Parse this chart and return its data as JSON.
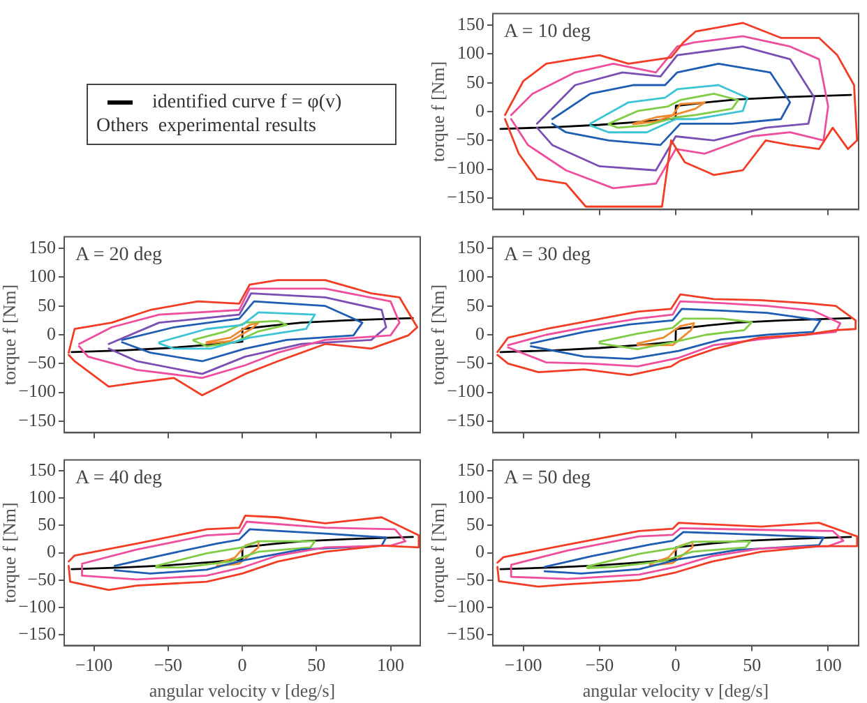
{
  "chart_data": [
    {
      "type": "line",
      "ylabel": "torque f [Nm]",
      "annotations": [
        "A = 10 deg",
        "Others  experimental results"
      ],
      "xlim": [
        -120,
        120
      ],
      "ylim": [
        -170,
        170
      ],
      "xticks": [
        -100,
        -50,
        0,
        50,
        100
      ],
      "yticks": [
        -150,
        -100,
        -50,
        0,
        50,
        100,
        150
      ],
      "tick_labels": "y",
      "legend": "left",
      "marker": "none",
      "line_style": "solid",
      "series": [
        {
          "type": "line",
          "color": "#f23c24",
          "x": [
            -112,
            -100,
            -85,
            -69,
            -50,
            -31,
            -3,
            5,
            13,
            44,
            69,
            94,
            106,
            117,
            119,
            113,
            103,
            94,
            75,
            59,
            44,
            25,
            6,
            -3,
            -9,
            -59,
            -72,
            -91,
            -103,
            -112
          ],
          "values": [
            -6,
            53,
            83,
            90,
            98,
            83,
            94,
            120,
            139,
            154,
            128,
            128,
            98,
            46,
            -50,
            -65,
            -28,
            -65,
            -58,
            -50,
            -102,
            -110,
            -88,
            -50,
            -165,
            -165,
            -125,
            -117,
            -73,
            -13
          ]
        },
        {
          "type": "line",
          "color": "#ee4f9c",
          "x": [
            -108,
            -94,
            -66,
            -41,
            -13,
            1,
            12,
            44,
            75,
            94,
            100,
            97,
            75,
            50,
            19,
            0,
            -13,
            -41,
            -72,
            -97,
            -108
          ],
          "values": [
            -6,
            31,
            68,
            83,
            68,
            113,
            120,
            131,
            113,
            91,
            9,
            -50,
            -36,
            -43,
            -73,
            -65,
            -125,
            -133,
            -102,
            -58,
            -13
          ]
        },
        {
          "type": "line",
          "color": "#7a4fb4",
          "x": [
            -91,
            -66,
            -35,
            -10,
            1,
            44,
            75,
            91,
            87,
            59,
            25,
            0,
            -13,
            -50,
            -81,
            -91
          ],
          "values": [
            -21,
            46,
            68,
            61,
            98,
            113,
            91,
            24,
            -21,
            -28,
            -50,
            -43,
            -102,
            -95,
            -58,
            -28
          ]
        },
        {
          "type": "line",
          "color": "#1f5db3",
          "x": [
            -81,
            -56,
            -28,
            -7,
            1,
            28,
            62,
            75,
            69,
            37,
            3,
            -10,
            -44,
            -72,
            -81
          ],
          "values": [
            -13,
            31,
            46,
            46,
            68,
            83,
            68,
            16,
            -13,
            -21,
            -21,
            -58,
            -50,
            -36,
            -21
          ]
        },
        {
          "type": "line",
          "color": "#3cc4d4",
          "x": [
            -56,
            -31,
            -7,
            1,
            28,
            47,
            44,
            13,
            0,
            -19,
            -44,
            -56
          ],
          "values": [
            -21,
            16,
            24,
            39,
            46,
            24,
            1,
            -13,
            -13,
            -36,
            -36,
            -24
          ]
        },
        {
          "type": "line",
          "color": "#80cc44",
          "x": [
            -44,
            -25,
            -5,
            3,
            25,
            41,
            37,
            13,
            0,
            -19,
            -38,
            -44
          ],
          "values": [
            -21,
            1,
            9,
            20,
            31,
            20,
            5,
            -6,
            -10,
            -24,
            -28,
            -22
          ]
        },
        {
          "type": "line",
          "color": "#f08a30",
          "x": [
            -28,
            -13,
            -2,
            3,
            19,
            13,
            0,
            -13,
            -28
          ],
          "values": [
            -21,
            -10,
            -6,
            13,
            16,
            5,
            -5,
            -17,
            -22
          ]
        },
        {
          "type": "line",
          "name": "identified curve f = φ(v)",
          "color": "#000000",
          "x": [
            -115,
            -80,
            -50,
            -20,
            -0.1,
            0.1,
            20,
            40,
            70,
            115
          ],
          "values": [
            -30,
            -27,
            -23,
            -17,
            -12,
            10,
            16,
            21,
            25,
            29
          ]
        }
      ]
    },
    {
      "type": "line",
      "ylabel": "torque f [Nm]",
      "annotations": [
        "A = 20 deg"
      ],
      "xlim": [
        -120,
        120
      ],
      "ylim": [
        -170,
        170
      ],
      "xticks": [
        -100,
        -50,
        0,
        50,
        100
      ],
      "yticks": [
        -150,
        -100,
        -50,
        0,
        50,
        100,
        150
      ],
      "tick_labels": "y",
      "marker": "none",
      "line_style": "solid",
      "series": [
        {
          "type": "line",
          "color": "#f23c24",
          "x": [
            -117,
            -113,
            -88,
            -62,
            -30,
            -2,
            5,
            24,
            56,
            87,
            106,
            118,
            112,
            87,
            56,
            24,
            2,
            -27,
            -46,
            -71,
            -90,
            -113,
            -117
          ],
          "values": [
            -31,
            10,
            21,
            43,
            58,
            54,
            87,
            95,
            95,
            72,
            65,
            13,
            -1,
            -24,
            -16,
            -46,
            -68,
            -105,
            -75,
            -83,
            -90,
            -46,
            -35
          ]
        },
        {
          "type": "line",
          "color": "#ee4f9c",
          "x": [
            -110,
            -88,
            -56,
            -2,
            5,
            56,
            100,
            106,
            100,
            56,
            24,
            2,
            -27,
            -71,
            -104,
            -110
          ],
          "values": [
            -16,
            13,
            35,
            43,
            80,
            80,
            58,
            21,
            -1,
            -9,
            -31,
            -53,
            -75,
            -61,
            -38,
            -20
          ]
        },
        {
          "type": "line",
          "color": "#7a4fb4",
          "x": [
            -90,
            -56,
            -2,
            6,
            56,
            94,
            97,
            87,
            40,
            2,
            -27,
            -71,
            -90
          ],
          "values": [
            -16,
            21,
            35,
            72,
            65,
            43,
            13,
            -9,
            -16,
            -38,
            -68,
            -46,
            -24
          ]
        },
        {
          "type": "line",
          "color": "#1f5db3",
          "x": [
            -81,
            -46,
            -2,
            8,
            56,
            81,
            75,
            30,
            2,
            -27,
            -62,
            -81
          ],
          "values": [
            -9,
            13,
            28,
            58,
            50,
            21,
            -1,
            -9,
            -24,
            -46,
            -31,
            -13
          ]
        },
        {
          "type": "line",
          "color": "#3cc4d4",
          "x": [
            -56,
            -24,
            0,
            11,
            49,
            43,
            5,
            -21,
            -46,
            -56
          ],
          "values": [
            -13,
            10,
            17,
            39,
            35,
            10,
            -5,
            -24,
            -24,
            -15
          ]
        },
        {
          "type": "line",
          "color": "#80cc44",
          "x": [
            -33,
            -11,
            2,
            24,
            30,
            11,
            -5,
            -24,
            -33
          ],
          "values": [
            -9,
            6,
            21,
            24,
            17,
            6,
            -13,
            -20,
            -10
          ]
        },
        {
          "type": "line",
          "color": "#f08a30",
          "x": [
            -24,
            -8,
            5,
            11,
            6,
            -8,
            -24
          ],
          "values": [
            -13,
            -5,
            17,
            21,
            10,
            -11,
            -15
          ]
        },
        {
          "type": "line",
          "color": "#000000",
          "x": [
            -115,
            -80,
            -50,
            -20,
            -0.1,
            0.1,
            20,
            40,
            70,
            115
          ],
          "values": [
            -30,
            -27,
            -23,
            -17,
            -12,
            10,
            16,
            21,
            25,
            29
          ]
        }
      ]
    },
    {
      "type": "line",
      "ylabel": "torque f [Nm]",
      "annotations": [
        "A = 30 deg"
      ],
      "xlim": [
        -120,
        120
      ],
      "ylim": [
        -170,
        170
      ],
      "xticks": [
        -100,
        -50,
        0,
        50,
        100
      ],
      "yticks": [
        -150,
        -100,
        -50,
        0,
        50,
        100,
        150
      ],
      "tick_labels": "y",
      "marker": "none",
      "line_style": "solid",
      "series": [
        {
          "type": "line",
          "color": "#f23c24",
          "x": [
            -117,
            -110,
            -85,
            -55,
            -25,
            -3,
            3,
            25,
            55,
            85,
            105,
            118,
            118,
            105,
            85,
            55,
            25,
            3,
            -3,
            -30,
            -60,
            -90,
            -110,
            -117
          ],
          "values": [
            -30,
            -5,
            10,
            25,
            40,
            45,
            70,
            62,
            60,
            55,
            50,
            25,
            10,
            8,
            0,
            -5,
            -25,
            -45,
            -55,
            -70,
            -60,
            -65,
            -50,
            -35
          ]
        },
        {
          "type": "line",
          "color": "#ee4f9c",
          "x": [
            -110,
            -85,
            -55,
            -25,
            -2,
            3,
            30,
            60,
            90,
            108,
            105,
            85,
            55,
            25,
            2,
            -25,
            -55,
            -85,
            -110
          ],
          "values": [
            -18,
            0,
            15,
            28,
            35,
            58,
            55,
            50,
            42,
            20,
            5,
            0,
            -8,
            -18,
            -40,
            -55,
            -50,
            -48,
            -22
          ]
        },
        {
          "type": "line",
          "color": "#1f5db3",
          "x": [
            -95,
            -60,
            -30,
            -2,
            4,
            30,
            60,
            95,
            90,
            60,
            30,
            2,
            -30,
            -60,
            -95
          ],
          "values": [
            -15,
            5,
            18,
            25,
            45,
            42,
            38,
            25,
            5,
            0,
            -8,
            -28,
            -42,
            -38,
            -20
          ]
        },
        {
          "type": "line",
          "color": "#80cc44",
          "x": [
            -50,
            -25,
            -2,
            5,
            30,
            50,
            45,
            20,
            0,
            -25,
            -50
          ],
          "values": [
            -12,
            2,
            12,
            28,
            28,
            22,
            8,
            0,
            -12,
            -25,
            -15
          ]
        },
        {
          "type": "line",
          "color": "#f08a30",
          "x": [
            -25,
            -8,
            3,
            12,
            10,
            -2,
            -25
          ],
          "values": [
            -15,
            -5,
            15,
            20,
            8,
            -18,
            -18
          ]
        },
        {
          "type": "line",
          "color": "#000000",
          "x": [
            -115,
            -80,
            -50,
            -20,
            -0.1,
            0.1,
            20,
            40,
            70,
            115
          ],
          "values": [
            -30,
            -27,
            -23,
            -17,
            -12,
            10,
            16,
            21,
            25,
            29
          ]
        }
      ]
    },
    {
      "type": "line",
      "xlabel": "angular velocity v [deg/s]",
      "ylabel": "torque f [Nm]",
      "annotations": [
        "A = 40 deg"
      ],
      "xlim": [
        -120,
        120
      ],
      "ylim": [
        -170,
        170
      ],
      "xticks": [
        -100,
        -50,
        0,
        50,
        100
      ],
      "yticks": [
        -150,
        -100,
        -50,
        0,
        50,
        100,
        150
      ],
      "marker": "none",
      "line_style": "solid",
      "series": [
        {
          "type": "line",
          "color": "#f23c24",
          "x": [
            -117,
            -113,
            -71,
            -24,
            -2,
            2,
            24,
            56,
            94,
            119,
            119,
            94,
            56,
            24,
            0,
            -24,
            -71,
            -90,
            -116,
            -117
          ],
          "values": [
            -16,
            -5,
            17,
            43,
            46,
            68,
            65,
            54,
            65,
            32,
            10,
            13,
            2,
            -16,
            -38,
            -53,
            -60,
            -68,
            -53,
            -24
          ]
        },
        {
          "type": "line",
          "color": "#ee4f9c",
          "x": [
            -108,
            -71,
            -24,
            -2,
            3,
            56,
            103,
            110,
            100,
            56,
            24,
            0,
            -24,
            -71,
            -108,
            -108
          ],
          "values": [
            -20,
            6,
            32,
            35,
            57,
            46,
            43,
            21,
            13,
            10,
            -5,
            -27,
            -42,
            -49,
            -42,
            -23
          ]
        },
        {
          "type": "line",
          "color": "#1f5db3",
          "x": [
            -86,
            -55,
            -17,
            -2,
            5,
            56,
            97,
            94,
            40,
            2,
            -24,
            -62,
            -86
          ],
          "values": [
            -24,
            -5,
            17,
            24,
            43,
            35,
            28,
            13,
            6,
            -13,
            -31,
            -38,
            -32
          ]
        },
        {
          "type": "line",
          "color": "#80cc44",
          "x": [
            -58,
            -24,
            0,
            11,
            49,
            46,
            11,
            -8,
            -40,
            -58
          ],
          "values": [
            -24,
            -1,
            10,
            21,
            21,
            10,
            2,
            -16,
            -27,
            -27
          ]
        },
        {
          "type": "line",
          "color": "#f08a30",
          "x": [
            -17,
            -5,
            2,
            11,
            11,
            -2,
            -17
          ],
          "values": [
            -20,
            -9,
            13,
            21,
            10,
            -20,
            -24
          ]
        },
        {
          "type": "line",
          "color": "#000000",
          "x": [
            -115,
            -80,
            -50,
            -20,
            -0.1,
            0.1,
            20,
            40,
            70,
            115
          ],
          "values": [
            -30,
            -27,
            -23,
            -17,
            -12,
            10,
            16,
            21,
            25,
            29
          ]
        }
      ]
    },
    {
      "type": "line",
      "xlabel": "angular velocity v [deg/s]",
      "ylabel": "torque f [Nm]",
      "annotations": [
        "A = 50 deg"
      ],
      "xlim": [
        -120,
        120
      ],
      "ylim": [
        -170,
        170
      ],
      "xticks": [
        -100,
        -50,
        0,
        50,
        100
      ],
      "yticks": [
        -150,
        -100,
        -50,
        0,
        50,
        100,
        150
      ],
      "marker": "none",
      "line_style": "solid",
      "series": [
        {
          "type": "line",
          "color": "#f23c24",
          "x": [
            -117,
            -113,
            -71,
            -24,
            -2,
            2,
            24,
            56,
            94,
            119,
            119,
            94,
            56,
            24,
            0,
            -24,
            -71,
            -90,
            -116,
            -117
          ],
          "values": [
            -18,
            -8,
            15,
            40,
            44,
            55,
            52,
            48,
            55,
            30,
            12,
            12,
            2,
            -16,
            -36,
            -50,
            -58,
            -62,
            -52,
            -26
          ]
        },
        {
          "type": "line",
          "color": "#ee4f9c",
          "x": [
            -108,
            -71,
            -24,
            -2,
            3,
            56,
            103,
            110,
            100,
            56,
            24,
            0,
            -24,
            -71,
            -108,
            -108
          ],
          "values": [
            -22,
            4,
            30,
            33,
            45,
            42,
            40,
            22,
            12,
            8,
            -6,
            -26,
            -40,
            -48,
            -44,
            -25
          ]
        },
        {
          "type": "line",
          "color": "#1f5db3",
          "x": [
            -86,
            -55,
            -17,
            -2,
            5,
            56,
            97,
            94,
            40,
            2,
            -24,
            -62,
            -86
          ],
          "values": [
            -26,
            -6,
            15,
            22,
            38,
            33,
            28,
            14,
            5,
            -12,
            -30,
            -38,
            -34
          ]
        },
        {
          "type": "line",
          "color": "#80cc44",
          "x": [
            -58,
            -24,
            0,
            11,
            49,
            46,
            11,
            -8,
            -40,
            -58
          ],
          "values": [
            -25,
            -2,
            9,
            20,
            21,
            10,
            2,
            -15,
            -26,
            -28
          ]
        },
        {
          "type": "line",
          "color": "#f08a30",
          "x": [
            -17,
            -5,
            2,
            11,
            11,
            -2,
            -17
          ],
          "values": [
            -20,
            -9,
            12,
            20,
            10,
            -19,
            -23
          ]
        },
        {
          "type": "line",
          "color": "#000000",
          "x": [
            -115,
            -80,
            -50,
            -20,
            -0.1,
            0.1,
            20,
            40,
            70,
            115
          ],
          "values": [
            -30,
            -27,
            -23,
            -17,
            -12,
            10,
            16,
            21,
            25,
            29
          ]
        }
      ]
    }
  ]
}
